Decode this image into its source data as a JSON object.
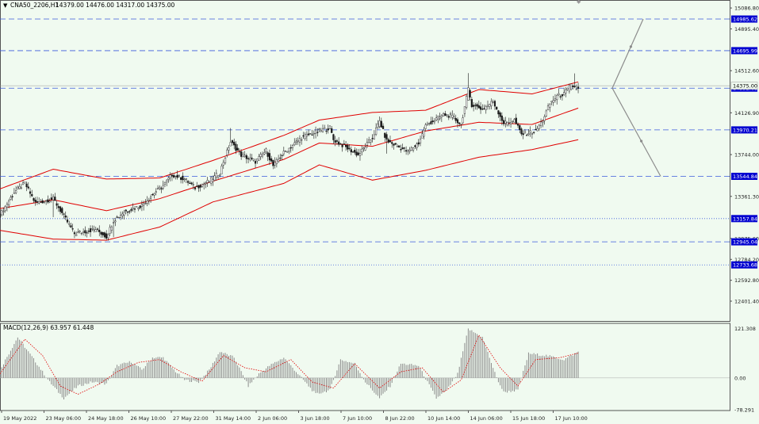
{
  "header": {
    "symbol_label": "CNA50_2206,H1",
    "ohlc_label": "14379.00 14476.00 14317.00 14375.00"
  },
  "macd_panel": {
    "label": "MACD(12,26,9) 63.957 61.448"
  },
  "colors": {
    "background": "#f0faf0",
    "candle": "#1a1a1a",
    "bollinger": "#e00000",
    "level_line": "#3b5bdb",
    "level_tag_bg": "#0000d0",
    "macd_hist": "#8c8c8c",
    "macd_signal": "#e00000",
    "projection": "#8c8c8c"
  },
  "chart_data": [
    {
      "type": "candlestick",
      "title": "CNA50_2206,H1",
      "ylim": [
        12220,
        15160
      ],
      "price_scale_labels": [
        "15086.80",
        "14895.40",
        "14512.60",
        "14126.90",
        "13744.00",
        "13361.30",
        "12975.60",
        "12784.20",
        "12592.80",
        "12401.40"
      ],
      "highlighted_levels": [
        {
          "label": "14985.62",
          "style": "dashed"
        },
        {
          "label": "14695.99",
          "style": "dashed"
        },
        {
          "label": "14352.61",
          "style": "dashed"
        },
        {
          "label": "13970.21",
          "style": "dashed"
        },
        {
          "label": "13544.84",
          "style": "dashed"
        },
        {
          "label": "13157.84",
          "style": "dotted"
        },
        {
          "label": "12945.04",
          "style": "dashed"
        },
        {
          "label": "12733.68",
          "style": "dotted"
        }
      ],
      "current_price": "14375.00",
      "x_tick_labels": [
        "19 May 2022",
        "23 May 06:00",
        "24 May 18:00",
        "26 May 10:00",
        "27 May 22:00",
        "31 May 14:00",
        "2 Jun 06:00",
        "3 Jun 18:00",
        "7 Jun 10:00",
        "8 Jun 22:00",
        "10 Jun 14:00",
        "14 Jun 06:00",
        "15 Jun 18:00",
        "17 Jun 10:00"
      ],
      "close_path": [
        [
          0,
          13190
        ],
        [
          8,
          13400
        ],
        [
          14,
          13480
        ],
        [
          20,
          13300
        ],
        [
          30,
          13340
        ],
        [
          36,
          13180
        ],
        [
          42,
          13020
        ],
        [
          54,
          13060
        ],
        [
          60,
          12990
        ],
        [
          64,
          13140
        ],
        [
          70,
          13220
        ],
        [
          80,
          13280
        ],
        [
          86,
          13380
        ],
        [
          92,
          13460
        ],
        [
          97,
          13560
        ],
        [
          104,
          13520
        ],
        [
          110,
          13440
        ],
        [
          118,
          13500
        ],
        [
          124,
          13580
        ],
        [
          126,
          13680
        ],
        [
          130,
          13860
        ],
        [
          136,
          13740
        ],
        [
          144,
          13680
        ],
        [
          150,
          13780
        ],
        [
          154,
          13640
        ],
        [
          160,
          13760
        ],
        [
          170,
          13900
        ],
        [
          178,
          13950
        ],
        [
          186,
          13990
        ],
        [
          188,
          13880
        ],
        [
          194,
          13820
        ],
        [
          202,
          13740
        ],
        [
          210,
          13900
        ],
        [
          214,
          14050
        ],
        [
          218,
          13870
        ],
        [
          224,
          13820
        ],
        [
          230,
          13770
        ],
        [
          236,
          13850
        ],
        [
          240,
          14010
        ],
        [
          244,
          14050
        ],
        [
          250,
          14110
        ],
        [
          254,
          14100
        ],
        [
          260,
          14020
        ],
        [
          264,
          14340
        ],
        [
          266,
          14200
        ],
        [
          272,
          14160
        ],
        [
          278,
          14230
        ],
        [
          284,
          14030
        ],
        [
          290,
          14060
        ],
        [
          294,
          13930
        ],
        [
          302,
          13960
        ],
        [
          306,
          14060
        ],
        [
          310,
          14210
        ],
        [
          314,
          14280
        ],
        [
          318,
          14300
        ],
        [
          322,
          14380
        ],
        [
          326,
          14340
        ]
      ],
      "bollinger_mid": [
        [
          0,
          13250
        ],
        [
          30,
          13330
        ],
        [
          60,
          13230
        ],
        [
          90,
          13340
        ],
        [
          120,
          13500
        ],
        [
          160,
          13700
        ],
        [
          180,
          13850
        ],
        [
          210,
          13820
        ],
        [
          240,
          13960
        ],
        [
          270,
          14040
        ],
        [
          300,
          14020
        ],
        [
          326,
          14170
        ]
      ],
      "bollinger_upper": [
        [
          0,
          13430
        ],
        [
          30,
          13610
        ],
        [
          60,
          13520
        ],
        [
          90,
          13530
        ],
        [
          120,
          13690
        ],
        [
          160,
          13920
        ],
        [
          180,
          14060
        ],
        [
          210,
          14130
        ],
        [
          240,
          14150
        ],
        [
          270,
          14340
        ],
        [
          300,
          14300
        ],
        [
          326,
          14410
        ]
      ],
      "bollinger_lower": [
        [
          0,
          13050
        ],
        [
          30,
          12970
        ],
        [
          60,
          12960
        ],
        [
          90,
          13080
        ],
        [
          120,
          13310
        ],
        [
          160,
          13480
        ],
        [
          180,
          13650
        ],
        [
          210,
          13510
        ],
        [
          240,
          13600
        ],
        [
          270,
          13720
        ],
        [
          300,
          13790
        ],
        [
          326,
          13880
        ]
      ],
      "projection": {
        "start": "14352.61",
        "targets": [
          "14985.62",
          "13544.84"
        ]
      }
    },
    {
      "type": "bar",
      "title": "MACD(12,26,9) 63.957 61.448",
      "ylim": [
        -80,
        130
      ],
      "scale_labels": [
        "121.308",
        "0.00",
        "-78.291"
      ],
      "histogram_path": [
        [
          0,
          20
        ],
        [
          10,
          100
        ],
        [
          20,
          40
        ],
        [
          28,
          -10
        ],
        [
          36,
          -50
        ],
        [
          44,
          -20
        ],
        [
          52,
          -10
        ],
        [
          60,
          -15
        ],
        [
          66,
          30
        ],
        [
          74,
          40
        ],
        [
          80,
          20
        ],
        [
          86,
          50
        ],
        [
          92,
          50
        ],
        [
          98,
          20
        ],
        [
          104,
          -5
        ],
        [
          112,
          -10
        ],
        [
          118,
          20
        ],
        [
          124,
          65
        ],
        [
          132,
          50
        ],
        [
          140,
          -20
        ],
        [
          146,
          10
        ],
        [
          152,
          30
        ],
        [
          160,
          50
        ],
        [
          170,
          0
        ],
        [
          178,
          -40
        ],
        [
          186,
          -30
        ],
        [
          192,
          45
        ],
        [
          200,
          35
        ],
        [
          206,
          -10
        ],
        [
          214,
          -50
        ],
        [
          220,
          -20
        ],
        [
          226,
          35
        ],
        [
          236,
          30
        ],
        [
          246,
          -50
        ],
        [
          252,
          -30
        ],
        [
          258,
          10
        ],
        [
          264,
          120
        ],
        [
          272,
          100
        ],
        [
          280,
          0
        ],
        [
          284,
          -35
        ],
        [
          292,
          -30
        ],
        [
          298,
          60
        ],
        [
          308,
          55
        ],
        [
          318,
          45
        ],
        [
          326,
          64
        ]
      ],
      "signal_path": [
        [
          0,
          10
        ],
        [
          14,
          95
        ],
        [
          24,
          55
        ],
        [
          34,
          -20
        ],
        [
          44,
          -40
        ],
        [
          56,
          -15
        ],
        [
          66,
          15
        ],
        [
          78,
          38
        ],
        [
          90,
          45
        ],
        [
          102,
          15
        ],
        [
          114,
          -8
        ],
        [
          126,
          55
        ],
        [
          138,
          25
        ],
        [
          150,
          15
        ],
        [
          164,
          45
        ],
        [
          176,
          -10
        ],
        [
          188,
          -25
        ],
        [
          200,
          35
        ],
        [
          214,
          -25
        ],
        [
          226,
          15
        ],
        [
          238,
          25
        ],
        [
          250,
          -35
        ],
        [
          260,
          -5
        ],
        [
          270,
          105
        ],
        [
          282,
          25
        ],
        [
          292,
          -20
        ],
        [
          302,
          45
        ],
        [
          316,
          50
        ],
        [
          326,
          61
        ]
      ]
    }
  ]
}
